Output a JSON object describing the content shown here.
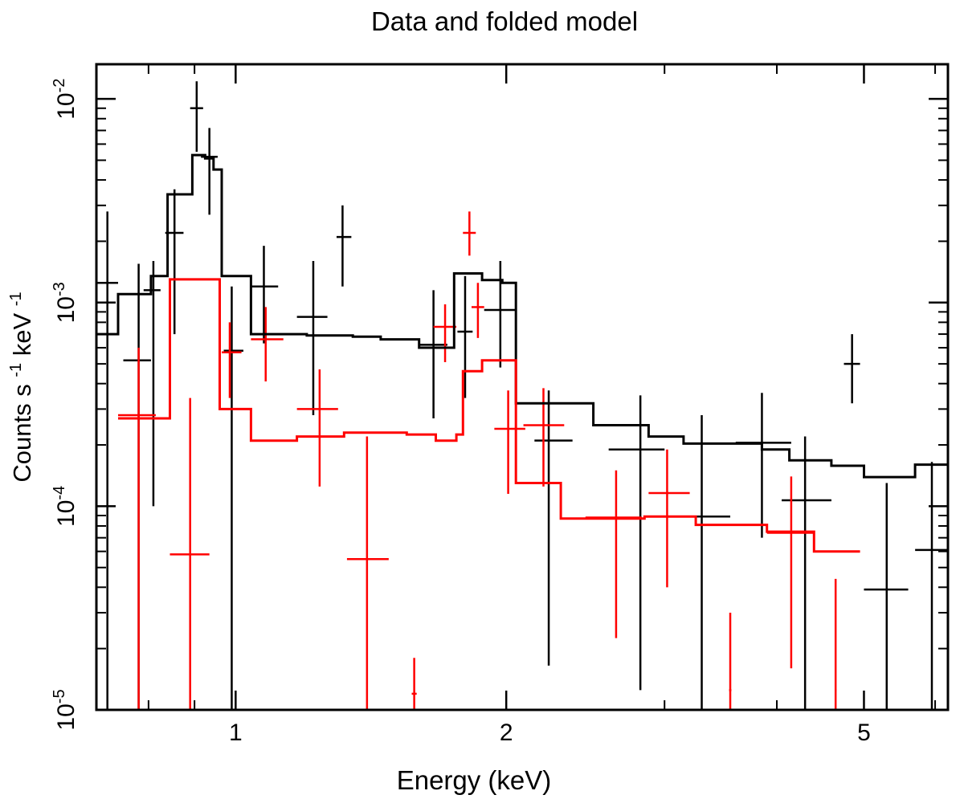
{
  "chart_data": {
    "type": "scatter",
    "title": "Data and folded model",
    "xlabel": "Energy (keV)",
    "ylabel": {
      "base": "Counts s",
      "exp1": "-1",
      "mid": " keV",
      "exp2": "-1"
    },
    "xscale": "log",
    "yscale": "log",
    "xlim": [
      0.7,
      6.2
    ],
    "ylim": [
      1e-05,
      0.0148
    ],
    "x_ticks": [
      {
        "value": 1,
        "label": "1"
      },
      {
        "value": 2,
        "label": "2"
      },
      {
        "value": 5,
        "label": "5"
      }
    ],
    "y_ticks": [
      {
        "value": 1e-05,
        "base": "10",
        "exp": "-5"
      },
      {
        "value": 0.0001,
        "base": "10",
        "exp": "-4"
      },
      {
        "value": 0.001,
        "base": "10",
        "exp": "-3"
      },
      {
        "value": 0.01,
        "base": "10",
        "exp": "-2"
      }
    ],
    "colors": {
      "series_1": "#000000",
      "series_2": "#ff0000",
      "axis": "#000000"
    },
    "series": [
      {
        "name": "data_1",
        "color": "#000000",
        "points": [
          {
            "x": 0.72,
            "xerr": [
              0.7,
              0.74
            ],
            "y": 0.00125,
            "yerr": [
              1e-05,
              0.0028
            ]
          },
          {
            "x": 0.78,
            "xerr": [
              0.75,
              0.805
            ],
            "y": 0.00052,
            "yerr": [
              1e-05,
              0.00155
            ]
          },
          {
            "x": 0.81,
            "xerr": [
              0.79,
              0.825
            ],
            "y": 0.00115,
            "yerr": [
              0.0001,
              0.0016
            ]
          },
          {
            "x": 0.855,
            "xerr": [
              0.835,
              0.875
            ],
            "y": 0.0022,
            "yerr": [
              0.0007,
              0.0036
            ]
          },
          {
            "x": 0.905,
            "xerr": [
              0.89,
              0.92
            ],
            "y": 0.009,
            "yerr": [
              0.0055,
              0.0122
            ]
          },
          {
            "x": 0.935,
            "xerr": [
              0.915,
              0.955
            ],
            "y": 0.0052,
            "yerr": [
              0.0027,
              0.0072
            ]
          },
          {
            "x": 0.99,
            "xerr": [
              0.97,
              1.02
            ],
            "y": 0.00058,
            "yerr": [
              1e-05,
              0.0012
            ]
          },
          {
            "x": 1.075,
            "xerr": [
              1.04,
              1.115
            ],
            "y": 0.0012,
            "yerr": [
              0.00063,
              0.0019
            ]
          },
          {
            "x": 1.22,
            "xerr": [
              1.17,
              1.265
            ],
            "y": 0.00085,
            "yerr": [
              0.00028,
              0.0016
            ]
          },
          {
            "x": 1.315,
            "xerr": [
              1.295,
              1.345
            ],
            "y": 0.0021,
            "yerr": [
              0.0012,
              0.003
            ]
          },
          {
            "x": 1.66,
            "xerr": [
              1.6,
              1.72
            ],
            "y": 0.00062,
            "yerr": [
              0.00027,
              0.00115
            ]
          },
          {
            "x": 1.8,
            "xerr": [
              1.765,
              1.835
            ],
            "y": 0.00072,
            "yerr": [
              0.00034,
              0.00135
            ]
          },
          {
            "x": 1.97,
            "xerr": [
              1.89,
              2.05
            ],
            "y": 0.00092,
            "yerr": [
              0.00048,
              0.0016
            ]
          },
          {
            "x": 2.23,
            "xerr": [
              2.15,
              2.37
            ],
            "y": 0.00021,
            "yerr": [
              1.65e-05,
              0.00037
            ]
          },
          {
            "x": 2.82,
            "xerr": [
              2.6,
              3.0
            ],
            "y": 0.00019,
            "yerr": [
              1.25e-05,
              0.00035
            ]
          },
          {
            "x": 3.3,
            "xerr": [
              3.1,
              3.55
            ],
            "y": 8.9e-05,
            "yerr": [
              1e-05,
              0.00028
            ]
          },
          {
            "x": 3.85,
            "xerr": [
              3.6,
              4.15
            ],
            "y": 0.000205,
            "yerr": [
              7e-05,
              0.00036
            ]
          },
          {
            "x": 4.3,
            "xerr": [
              4.05,
              4.6
            ],
            "y": 0.000107,
            "yerr": [
              1e-05,
              0.00022
            ]
          },
          {
            "x": 4.85,
            "xerr": [
              4.75,
              4.95
            ],
            "y": 0.0005,
            "yerr": [
              0.00032,
              0.0007
            ]
          },
          {
            "x": 5.3,
            "xerr": [
              5.0,
              5.6
            ],
            "y": 3.9e-05,
            "yerr": [
              1e-05,
              0.00013
            ]
          },
          {
            "x": 5.95,
            "xerr": [
              5.7,
              6.2
            ],
            "y": 6.1e-05,
            "yerr": [
              1e-05,
              0.000165
            ]
          }
        ]
      },
      {
        "name": "data_2",
        "color": "#ff0000",
        "points": [
          {
            "x": 0.78,
            "xerr": [
              0.74,
              0.815
            ],
            "y": 0.00028,
            "yerr": [
              1e-05,
              0.0006
            ]
          },
          {
            "x": 0.89,
            "xerr": [
              0.845,
              0.935
            ],
            "y": 5.8e-05,
            "yerr": [
              1e-05,
              0.00034
            ]
          },
          {
            "x": 0.985,
            "xerr": [
              0.965,
              1.015
            ],
            "y": 0.00057,
            "yerr": [
              0.00034,
              0.0008
            ]
          },
          {
            "x": 1.08,
            "xerr": [
              1.04,
              1.13
            ],
            "y": 0.00066,
            "yerr": [
              0.00041,
              0.00095
            ]
          },
          {
            "x": 1.24,
            "xerr": [
              1.17,
              1.3
            ],
            "y": 0.0003,
            "yerr": [
              0.000125,
              0.00047
            ]
          },
          {
            "x": 1.4,
            "xerr": [
              1.33,
              1.48
            ],
            "y": 5.5e-05,
            "yerr": [
              1e-05,
              0.00022
            ]
          },
          {
            "x": 1.58,
            "xerr": [
              1.57,
              1.59
            ],
            "y": 1.2e-05,
            "yerr": [
              1e-05,
              1.8e-05
            ]
          },
          {
            "x": 1.71,
            "xerr": [
              1.66,
              1.76
            ],
            "y": 0.00076,
            "yerr": [
              0.00051,
              0.00098
            ]
          },
          {
            "x": 1.82,
            "xerr": [
              1.79,
              1.85
            ],
            "y": 0.0022,
            "yerr": [
              0.0017,
              0.0028
            ]
          },
          {
            "x": 1.86,
            "xerr": [
              1.83,
              1.89
            ],
            "y": 0.00095,
            "yerr": [
              0.00067,
              0.00125
            ]
          },
          {
            "x": 2.01,
            "xerr": [
              1.94,
              2.1
            ],
            "y": 0.00024,
            "yerr": [
              0.000115,
              0.00037
            ]
          },
          {
            "x": 2.2,
            "xerr": [
              2.09,
              2.32
            ],
            "y": 0.00025,
            "yerr": [
              0.000125,
              0.00038
            ]
          },
          {
            "x": 2.65,
            "xerr": [
              2.45,
              2.83
            ],
            "y": 8.8e-05,
            "yerr": [
              2.25e-05,
              0.00015
            ]
          },
          {
            "x": 3.02,
            "xerr": [
              2.88,
              3.2
            ],
            "y": 0.000116,
            "yerr": [
              4e-05,
              0.00019
            ]
          },
          {
            "x": 3.55,
            "xerr": [
              3.54,
              3.56
            ],
            "y": 1.25e-05,
            "yerr": [
              1e-05,
              3e-05
            ]
          },
          {
            "x": 4.15,
            "xerr": [
              3.9,
              4.4
            ],
            "y": 7.4e-05,
            "yerr": [
              1.6e-05,
              0.00014
            ]
          },
          {
            "x": 4.65,
            "xerr": [
              4.64,
              4.66
            ],
            "y": 1.25e-05,
            "yerr": [
              1e-05,
              4.4e-05
            ]
          }
        ]
      },
      {
        "name": "model_1",
        "color": "#000000",
        "kind": "step",
        "points": [
          {
            "x": 0.7,
            "y": 0.0007
          },
          {
            "x": 0.74,
            "y": 0.0011
          },
          {
            "x": 0.805,
            "y": 0.00135
          },
          {
            "x": 0.84,
            "y": 0.0034
          },
          {
            "x": 0.895,
            "y": 0.0053
          },
          {
            "x": 0.925,
            "y": 0.0051
          },
          {
            "x": 0.945,
            "y": 0.0045
          },
          {
            "x": 0.965,
            "y": 0.00135
          },
          {
            "x": 1.04,
            "y": 0.0007
          },
          {
            "x": 1.2,
            "y": 0.00069
          },
          {
            "x": 1.35,
            "y": 0.00068
          },
          {
            "x": 1.45,
            "y": 0.00066
          },
          {
            "x": 1.6,
            "y": 0.0006
          },
          {
            "x": 1.75,
            "y": 0.00139
          },
          {
            "x": 1.88,
            "y": 0.00129
          },
          {
            "x": 1.98,
            "y": 0.00125
          },
          {
            "x": 2.05,
            "y": 0.00032
          },
          {
            "x": 2.5,
            "y": 0.00025
          },
          {
            "x": 2.88,
            "y": 0.00022
          },
          {
            "x": 3.15,
            "y": 0.000203
          },
          {
            "x": 3.85,
            "y": 0.00019
          },
          {
            "x": 4.13,
            "y": 0.000168
          },
          {
            "x": 4.6,
            "y": 0.000158
          },
          {
            "x": 5.0,
            "y": 0.000139
          },
          {
            "x": 5.7,
            "y": 0.00016
          },
          {
            "x": 6.2,
            "y": 0.00016
          }
        ]
      },
      {
        "name": "model_2",
        "color": "#ff0000",
        "kind": "step",
        "points": [
          {
            "x": 0.74,
            "y": 0.00027
          },
          {
            "x": 0.845,
            "y": 0.0013
          },
          {
            "x": 0.96,
            "y": 0.0003
          },
          {
            "x": 1.04,
            "y": 0.00021
          },
          {
            "x": 1.17,
            "y": 0.00022
          },
          {
            "x": 1.32,
            "y": 0.00023
          },
          {
            "x": 1.55,
            "y": 0.000225
          },
          {
            "x": 1.67,
            "y": 0.00021
          },
          {
            "x": 1.76,
            "y": 0.000225
          },
          {
            "x": 1.79,
            "y": 0.00046
          },
          {
            "x": 1.88,
            "y": 0.00052
          },
          {
            "x": 2.05,
            "y": 0.00013
          },
          {
            "x": 2.3,
            "y": 8.7e-05
          },
          {
            "x": 2.85,
            "y": 8.9e-05
          },
          {
            "x": 3.25,
            "y": 8.1e-05
          },
          {
            "x": 3.9,
            "y": 7.5e-05
          },
          {
            "x": 4.4,
            "y": 6e-05
          },
          {
            "x": 4.95,
            "y": 6e-05
          }
        ]
      }
    ]
  }
}
